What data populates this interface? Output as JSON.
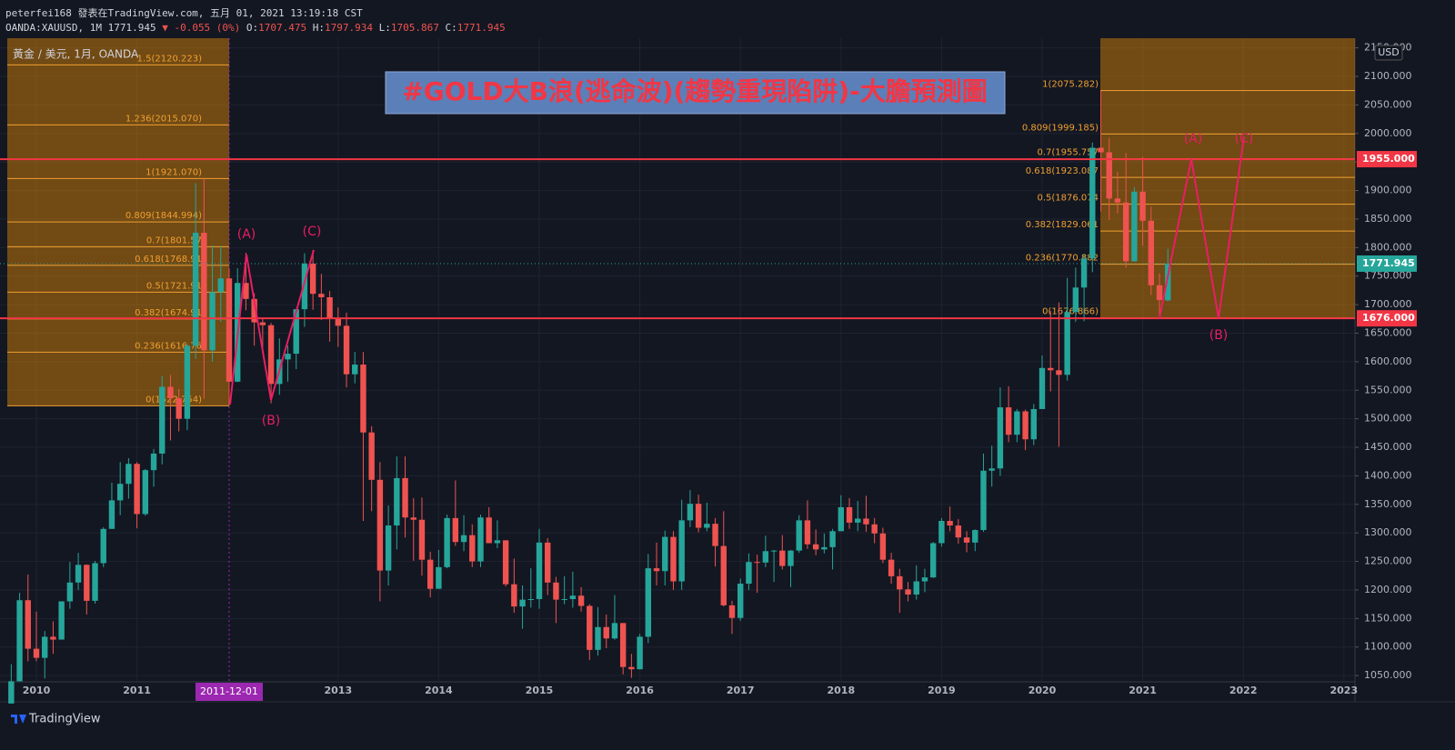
{
  "header": {
    "line1": "peterfei168 發表在TradingView.com, 五月 01, 2021 13:19:18 CST",
    "symbol": "OANDA:XAUUSD, 1M",
    "change": "▼ -0.055 (0%)",
    "ohlc_labels": [
      "O:",
      "H:",
      "L:",
      "C:"
    ]
  },
  "legend": "黃金 / 美元, 1月, OANDA",
  "currency": "USD",
  "brand": "TradingView",
  "chart_data": {
    "type": "candlestick",
    "title": "#GOLD大B浪(逃命波)(趨勢重現陷阱)-大膽預測圖",
    "up_color": "#26a69a",
    "down_color": "#ef5350",
    "grid": true,
    "ylim": [
      1039,
      2167
    ],
    "yticks": [
      {
        "value": 1050,
        "label": "1050.000"
      },
      {
        "value": 1100,
        "label": "1100.000"
      },
      {
        "value": 1150,
        "label": "1150.000"
      },
      {
        "value": 1200,
        "label": "1200.000"
      },
      {
        "value": 1250,
        "label": "1250.000"
      },
      {
        "value": 1300,
        "label": "1300.000"
      },
      {
        "value": 1350,
        "label": "1350.000"
      },
      {
        "value": 1400,
        "label": "1400.000"
      },
      {
        "value": 1450,
        "label": "1450.000"
      },
      {
        "value": 1500,
        "label": "1500.000"
      },
      {
        "value": 1550,
        "label": "1550.000"
      },
      {
        "value": 1600,
        "label": "1600.000"
      },
      {
        "value": 1650,
        "label": "1650.000"
      },
      {
        "value": 1700,
        "label": "1700.000"
      },
      {
        "value": 1750,
        "label": "1750.000"
      },
      {
        "value": 1800,
        "label": "1800.000"
      },
      {
        "value": 1850,
        "label": "1850.000"
      },
      {
        "value": 1900,
        "label": "1900.000"
      },
      {
        "value": 1950,
        "label": "1950.000"
      },
      {
        "value": 2000,
        "label": "2000.000"
      },
      {
        "value": 2050,
        "label": "2050.000"
      },
      {
        "value": 2100,
        "label": "2100.000"
      },
      {
        "value": 2150,
        "label": "2150.000"
      }
    ],
    "xticks": [
      {
        "value": "2010-01",
        "label": "2010"
      },
      {
        "value": "2011-01",
        "label": "2011"
      },
      {
        "value": "2013-01",
        "label": "2013"
      },
      {
        "value": "2014-01",
        "label": "2014"
      },
      {
        "value": "2015-01",
        "label": "2015"
      },
      {
        "value": "2016-01",
        "label": "2016"
      },
      {
        "value": "2017-01",
        "label": "2017"
      },
      {
        "value": "2018-01",
        "label": "2018"
      },
      {
        "value": "2019-01",
        "label": "2019"
      },
      {
        "value": "2020-01",
        "label": "2020"
      },
      {
        "value": "2021-01",
        "label": "2021"
      },
      {
        "value": "2022-01",
        "label": "2022"
      },
      {
        "value": "2023-01",
        "label": "2023"
      }
    ],
    "crosshair": {
      "x": "2011-12",
      "label": "2011-12-01"
    },
    "x": [
      "2009-10",
      "2009-11",
      "2009-12",
      "2010-01",
      "2010-02",
      "2010-03",
      "2010-04",
      "2010-05",
      "2010-06",
      "2010-07",
      "2010-08",
      "2010-09",
      "2010-10",
      "2010-11",
      "2010-12",
      "2011-01",
      "2011-02",
      "2011-03",
      "2011-04",
      "2011-05",
      "2011-06",
      "2011-07",
      "2011-08",
      "2011-09",
      "2011-10",
      "2011-11",
      "2011-12",
      "2012-01",
      "2012-02",
      "2012-03",
      "2012-04",
      "2012-05",
      "2012-06",
      "2012-07",
      "2012-08",
      "2012-09",
      "2012-10",
      "2012-11",
      "2012-12",
      "2013-01",
      "2013-02",
      "2013-03",
      "2013-04",
      "2013-05",
      "2013-06",
      "2013-07",
      "2013-08",
      "2013-09",
      "2013-10",
      "2013-11",
      "2013-12",
      "2014-01",
      "2014-02",
      "2014-03",
      "2014-04",
      "2014-05",
      "2014-06",
      "2014-07",
      "2014-08",
      "2014-09",
      "2014-10",
      "2014-11",
      "2014-12",
      "2015-01",
      "2015-02",
      "2015-03",
      "2015-04",
      "2015-05",
      "2015-06",
      "2015-07",
      "2015-08",
      "2015-09",
      "2015-10",
      "2015-11",
      "2015-12",
      "2016-01",
      "2016-02",
      "2016-03",
      "2016-04",
      "2016-05",
      "2016-06",
      "2016-07",
      "2016-08",
      "2016-09",
      "2016-10",
      "2016-11",
      "2016-12",
      "2017-01",
      "2017-02",
      "2017-03",
      "2017-04",
      "2017-05",
      "2017-06",
      "2017-07",
      "2017-08",
      "2017-09",
      "2017-10",
      "2017-11",
      "2017-12",
      "2018-01",
      "2018-02",
      "2018-03",
      "2018-04",
      "2018-05",
      "2018-06",
      "2018-07",
      "2018-08",
      "2018-09",
      "2018-10",
      "2018-11",
      "2018-12",
      "2019-01",
      "2019-02",
      "2019-03",
      "2019-04",
      "2019-05",
      "2019-06",
      "2019-07",
      "2019-08",
      "2019-09",
      "2019-10",
      "2019-11",
      "2019-12",
      "2020-01",
      "2020-02",
      "2020-03",
      "2020-04",
      "2020-05",
      "2020-06",
      "2020-07",
      "2020-08",
      "2020-09",
      "2020-10",
      "2020-11",
      "2020-12",
      "2021-01",
      "2021-02",
      "2021-03",
      "2021-04"
    ],
    "open": [
      1001,
      1040,
      1182,
      1097,
      1081,
      1118,
      1113,
      1180,
      1213,
      1244,
      1181,
      1247,
      1307,
      1357,
      1386,
      1421,
      1333,
      1410,
      1439,
      1556,
      1536,
      1500,
      1628,
      1826,
      1620,
      1722,
      1746,
      1565,
      1738,
      1710,
      1669,
      1664,
      1561,
      1604,
      1614,
      1692,
      1772,
      1719,
      1713,
      1676,
      1663,
      1578,
      1595,
      1476,
      1393,
      1234,
      1313,
      1396,
      1327,
      1323,
      1253,
      1202,
      1240,
      1326,
      1284,
      1296,
      1250,
      1327,
      1282,
      1287,
      1210,
      1171,
      1183,
      1184,
      1283,
      1213,
      1183,
      1184,
      1190,
      1172,
      1095,
      1135,
      1115,
      1142,
      1065,
      1061,
      1118,
      1238,
      1233,
      1293,
      1215,
      1322,
      1351,
      1309,
      1316,
      1277,
      1173,
      1151,
      1211,
      1249,
      1248,
      1268,
      1269,
      1242,
      1269,
      1322,
      1280,
      1271,
      1275,
      1303,
      1345,
      1318,
      1325,
      1315,
      1299,
      1253,
      1224,
      1201,
      1192,
      1215,
      1222,
      1282,
      1321,
      1313,
      1292,
      1283,
      1305,
      1409,
      1413,
      1520,
      1472,
      1513,
      1464,
      1517,
      1589,
      1585,
      1577,
      1687,
      1730,
      1781,
      1975,
      1967,
      1886,
      1879,
      1776,
      1898,
      1847,
      1734,
      1707.475
    ],
    "high": [
      1070,
      1195,
      1227,
      1162,
      1128,
      1145,
      1180,
      1249,
      1265,
      1245,
      1251,
      1310,
      1388,
      1424,
      1431,
      1424,
      1412,
      1447,
      1575,
      1577,
      1552,
      1632,
      1913,
      1921,
      1804,
      1803,
      1764,
      1764,
      1791,
      1720,
      1677,
      1668,
      1641,
      1628,
      1692,
      1790,
      1796,
      1754,
      1724,
      1695,
      1686,
      1617,
      1617,
      1487,
      1424,
      1348,
      1434,
      1434,
      1361,
      1362,
      1267,
      1270,
      1332,
      1392,
      1331,
      1315,
      1332,
      1345,
      1322,
      1287,
      1255,
      1208,
      1238,
      1307,
      1291,
      1223,
      1224,
      1232,
      1205,
      1175,
      1170,
      1157,
      1191,
      1142,
      1088,
      1123,
      1263,
      1283,
      1304,
      1303,
      1358,
      1375,
      1367,
      1353,
      1326,
      1338,
      1181,
      1220,
      1264,
      1262,
      1295,
      1270,
      1296,
      1270,
      1331,
      1357,
      1306,
      1299,
      1307,
      1366,
      1361,
      1356,
      1365,
      1326,
      1309,
      1265,
      1237,
      1214,
      1243,
      1237,
      1284,
      1326,
      1346,
      1324,
      1303,
      1306,
      1439,
      1453,
      1555,
      1557,
      1517,
      1516,
      1526,
      1611,
      1689,
      1704,
      1747,
      1765,
      1789,
      1984,
      2075,
      1992,
      1933,
      1966,
      1906,
      1959,
      1872,
      1755,
      1797.934
    ],
    "low": [
      1001,
      1040,
      1075,
      1075,
      1045,
      1088,
      1113,
      1167,
      1200,
      1157,
      1176,
      1240,
      1307,
      1331,
      1360,
      1308,
      1330,
      1381,
      1420,
      1462,
      1478,
      1480,
      1605,
      1535,
      1600,
      1670,
      1523,
      1564,
      1690,
      1628,
      1614,
      1527,
      1542,
      1565,
      1587,
      1661,
      1691,
      1673,
      1635,
      1626,
      1555,
      1562,
      1321,
      1338,
      1180,
      1208,
      1271,
      1292,
      1251,
      1225,
      1187,
      1202,
      1238,
      1277,
      1268,
      1240,
      1240,
      1282,
      1273,
      1206,
      1160,
      1132,
      1169,
      1167,
      1191,
      1142,
      1175,
      1169,
      1162,
      1077,
      1085,
      1098,
      1113,
      1052,
      1046,
      1061,
      1107,
      1208,
      1208,
      1200,
      1200,
      1310,
      1301,
      1303,
      1241,
      1171,
      1123,
      1146,
      1200,
      1195,
      1240,
      1214,
      1236,
      1205,
      1265,
      1272,
      1261,
      1264,
      1236,
      1303,
      1307,
      1303,
      1302,
      1282,
      1247,
      1211,
      1160,
      1180,
      1183,
      1196,
      1221,
      1276,
      1303,
      1281,
      1266,
      1268,
      1302,
      1381,
      1400,
      1459,
      1459,
      1445,
      1454,
      1517,
      1548,
      1451,
      1567,
      1670,
      1671,
      1757,
      1863,
      1849,
      1860,
      1765,
      1775,
      1803,
      1717,
      1677,
      1705.867
    ],
    "close": [
      1040,
      1182,
      1097,
      1081,
      1118,
      1113,
      1180,
      1213,
      1244,
      1181,
      1247,
      1307,
      1357,
      1386,
      1421,
      1333,
      1410,
      1439,
      1556,
      1536,
      1500,
      1628,
      1826,
      1620,
      1722,
      1746,
      1565,
      1738,
      1710,
      1669,
      1664,
      1561,
      1604,
      1614,
      1692,
      1772,
      1719,
      1713,
      1676,
      1663,
      1578,
      1595,
      1476,
      1393,
      1234,
      1313,
      1396,
      1327,
      1323,
      1253,
      1202,
      1240,
      1326,
      1284,
      1296,
      1250,
      1327,
      1282,
      1287,
      1210,
      1171,
      1183,
      1184,
      1283,
      1213,
      1183,
      1184,
      1190,
      1172,
      1095,
      1135,
      1115,
      1142,
      1065,
      1061,
      1118,
      1238,
      1233,
      1293,
      1215,
      1322,
      1351,
      1309,
      1316,
      1277,
      1173,
      1151,
      1211,
      1249,
      1248,
      1268,
      1269,
      1242,
      1269,
      1322,
      1280,
      1271,
      1275,
      1303,
      1345,
      1318,
      1325,
      1315,
      1299,
      1253,
      1224,
      1201,
      1192,
      1215,
      1222,
      1282,
      1321,
      1313,
      1292,
      1283,
      1305,
      1409,
      1413,
      1520,
      1472,
      1513,
      1464,
      1517,
      1589,
      1585,
      1577,
      1687,
      1730,
      1781,
      1975,
      1967,
      1886,
      1879,
      1776,
      1898,
      1847,
      1734,
      1708,
      1771.945
    ],
    "hlines": [
      {
        "value": 1955,
        "label": "1955.000",
        "color": "#f23645"
      },
      {
        "value": 1676,
        "label": "1676.000",
        "color": "#f23645"
      }
    ],
    "fib": [
      {
        "color": "#f0a030",
        "levels": [
          {
            "value": 2120.223,
            "label": "1.5(2120.223)"
          },
          {
            "value": 2015.07,
            "label": "1.236(2015.070)"
          },
          {
            "value": 1921.07,
            "label": "1(1921.070)"
          },
          {
            "value": 1844.994,
            "label": "0.809(1844.994)"
          },
          {
            "value": 1801.57,
            "label": "0.7(1801.57"
          },
          {
            "value": 1768.91,
            "label": "0.618(1768.91"
          },
          {
            "value": 1721.91,
            "label": "0.5(1721.91"
          },
          {
            "value": 1674.91,
            "label": "0.382(1674.91"
          },
          {
            "value": 1616.76,
            "label": "0.236(1616.76"
          },
          {
            "value": 1522.754,
            "label": "0(1522.754)"
          }
        ]
      },
      {
        "color": "#f0a030",
        "levels": [
          {
            "value": 2075.282,
            "label": "1(2075.282)"
          },
          {
            "value": 1999.185,
            "label": "0.809(1999.185)"
          },
          {
            "value": 1955.757,
            "label": "0.7(1955.757"
          },
          {
            "value": 1923.087,
            "label": "0.618(1923.087"
          },
          {
            "value": 1876.074,
            "label": "0.5(1876.074"
          },
          {
            "value": 1829.06,
            "label": "0.382(1829.061"
          },
          {
            "value": 1770.882,
            "label": "0.236(1770.882"
          },
          {
            "value": 1676.866,
            "label": "0(1676.866)"
          }
        ]
      }
    ],
    "waves": [
      "(A)",
      "(B)",
      "(C)",
      "(A)",
      "(B)",
      "(C)"
    ]
  }
}
